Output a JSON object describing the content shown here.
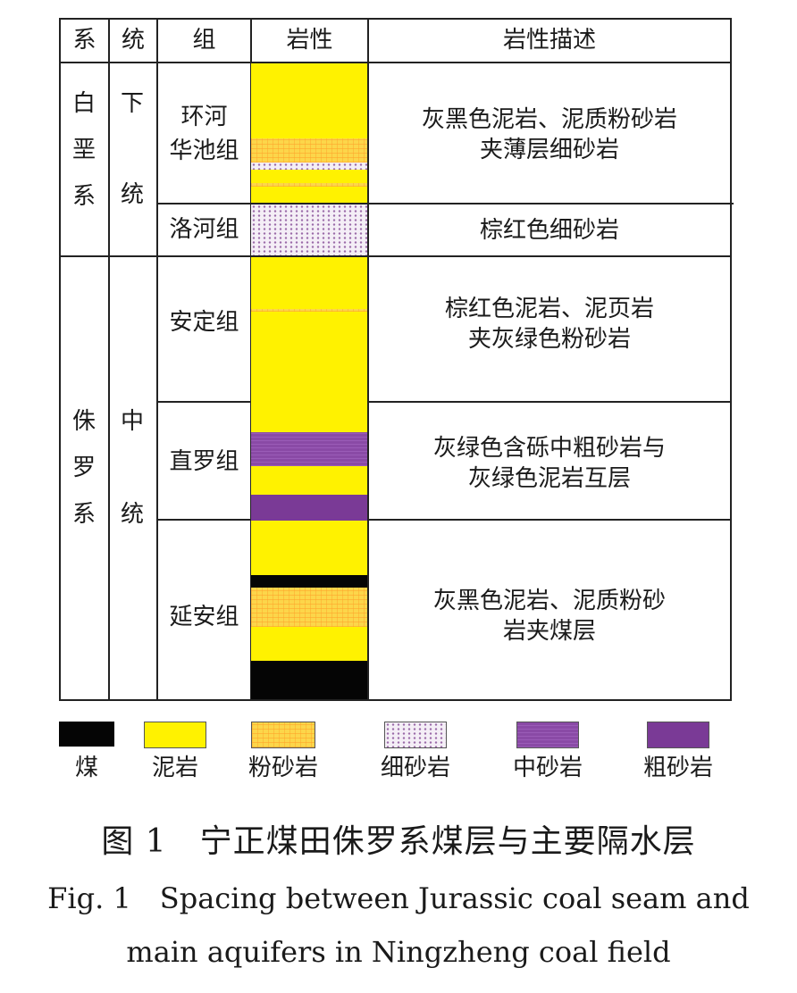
{
  "table": {
    "headers": [
      "系",
      "统",
      "组",
      "岩性",
      "岩性描述"
    ],
    "system_cretaceous": [
      "白",
      "垩",
      "系"
    ],
    "series_lower": [
      "下",
      "统"
    ],
    "system_jurassic": [
      "侏",
      "罗",
      "系"
    ],
    "series_middle": [
      "中",
      "统"
    ],
    "rows": [
      {
        "group_lines": [
          "环河",
          "华池组"
        ],
        "desc_lines": [
          "灰黑色泥岩、泥质粉砂岩",
          "夹薄层细砂岩"
        ]
      },
      {
        "group_lines": [
          "洛河组"
        ],
        "desc_lines": [
          "棕红色细砂岩"
        ]
      },
      {
        "group_lines": [
          "安定组"
        ],
        "desc_lines": [
          "棕红色泥岩、泥页岩",
          "夹灰绿色粉砂岩"
        ]
      },
      {
        "group_lines": [
          "直罗组"
        ],
        "desc_lines": [
          "灰绿色含砾中粗砂岩与",
          "灰绿色泥岩互层"
        ]
      },
      {
        "group_lines": [
          "延安组"
        ],
        "desc_lines": [
          "灰黑色泥岩、泥质粉砂",
          "岩夹煤层"
        ]
      }
    ]
  },
  "lithology_colors": {
    "coal": "#050505",
    "mudstone": "#fff200",
    "siltstone": "#fcd64a",
    "fine_sandstone": "#f4eef6",
    "medium_sandstone": "#8a4aa6",
    "coarse_sandstone": "#7a3a96"
  },
  "legend": [
    {
      "key": "coal",
      "label": "煤"
    },
    {
      "key": "mudstone",
      "label": "泥岩"
    },
    {
      "key": "siltstone",
      "label": "粉砂岩"
    },
    {
      "key": "fine_sandstone",
      "label": "细砂岩"
    },
    {
      "key": "medium_sandstone",
      "label": "中砂岩"
    },
    {
      "key": "coarse_sandstone",
      "label": "粗砂岩"
    }
  ],
  "caption": {
    "cn": "图 1　宁正煤田侏罗系煤层与主要隔水层",
    "en_line1": "Fig. 1　Spacing between Jurassic coal seam and",
    "en_line2": "main aquifers in Ningzheng coal field"
  }
}
